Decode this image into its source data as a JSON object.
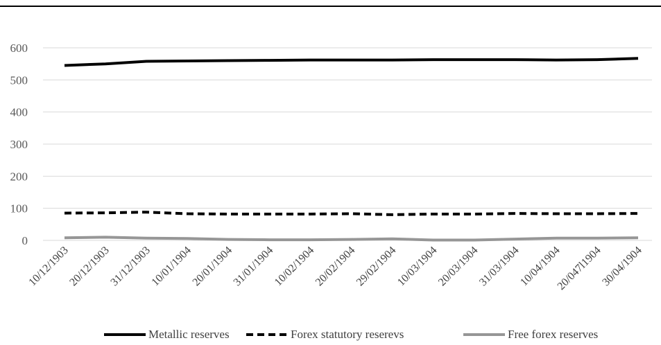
{
  "chart_data": {
    "type": "line",
    "title": "",
    "xlabel": "",
    "ylabel": "",
    "ylim": [
      0,
      600
    ],
    "y_ticks": [
      "0",
      "100",
      "200",
      "300",
      "400",
      "500",
      "600"
    ],
    "grid": true,
    "legend_position": "bottom",
    "categories": [
      "10/12/1903",
      "20/12/1903",
      "31/12/1903",
      "10/01/1904",
      "20/01/1904",
      "31/01/1904",
      "10/02/1904",
      "20/02/1904",
      "29/02/1904",
      "10/03/1904",
      "20/03/1904",
      "31/03/1904",
      "10/04/1904",
      "20/047l1904",
      "30/04/1904"
    ],
    "series": [
      {
        "name": "Metallic reserves",
        "color": "#000000",
        "style": "solid",
        "values": [
          545,
          550,
          558,
          559,
          560,
          561,
          562,
          562,
          562,
          563,
          563,
          563,
          562,
          563,
          567
        ]
      },
      {
        "name": "Forex statutory reserevs",
        "color": "#000000",
        "style": "dashed",
        "values": [
          85,
          86,
          88,
          83,
          82,
          82,
          82,
          83,
          80,
          82,
          82,
          84,
          83,
          83,
          84
        ]
      },
      {
        "name": "Free forex reserves",
        "color": "#969696",
        "style": "solid",
        "values": [
          8,
          10,
          7,
          6,
          3,
          2,
          2,
          3,
          5,
          1,
          1,
          4,
          7,
          7,
          8
        ]
      }
    ]
  }
}
